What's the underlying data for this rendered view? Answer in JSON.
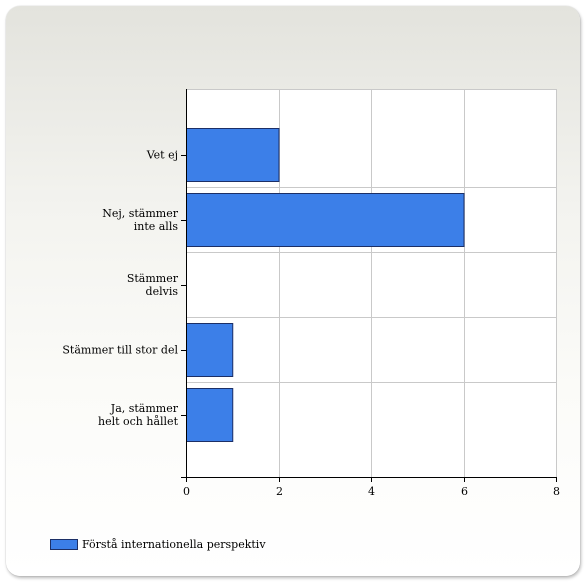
{
  "chart_data": {
    "type": "bar",
    "orientation": "horizontal",
    "categories": [
      "Vet ej",
      "Nej, stämmer inte alls",
      "Stämmer delvis",
      "Stämmer till stor del",
      "Ja, stämmer helt och hållet"
    ],
    "category_lines": [
      [
        "Vet ej"
      ],
      [
        "Nej, stämmer",
        "inte alls"
      ],
      [
        "Stämmer",
        "delvis"
      ],
      [
        "Stämmer till stor del"
      ],
      [
        "Ja, stämmer",
        "helt och hållet"
      ]
    ],
    "series": [
      {
        "name": "Förstå internationella perspektiv",
        "values": [
          2,
          6,
          0,
          1,
          1
        ],
        "color": "#3c7fe8",
        "border": "#1c2f66"
      }
    ],
    "xlim": [
      0,
      8
    ],
    "xticks": [
      "0",
      "2",
      "4",
      "6",
      "8"
    ],
    "grid": true,
    "grid_color": "#c9c9c9",
    "legend_position": "bottom-left",
    "title": "",
    "xlabel": "",
    "ylabel": ""
  }
}
